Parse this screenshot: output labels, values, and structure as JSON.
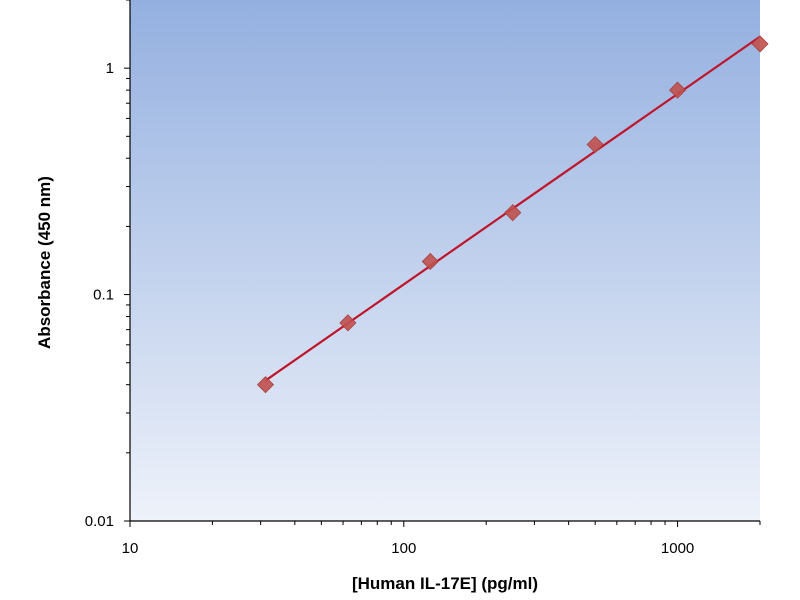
{
  "chart_data": {
    "type": "scatter",
    "title": "",
    "xlabel": "[Human IL-17E] (pg/ml)",
    "ylabel": "Absorbance (450 nm)",
    "x_scale": "log",
    "y_scale": "log",
    "xlim": [
      10,
      2000
    ],
    "ylim": [
      0.01,
      2
    ],
    "x_ticks": [
      {
        "value": 10,
        "label": "10"
      },
      {
        "value": 100,
        "label": "100"
      },
      {
        "value": 1000,
        "label": "1000"
      }
    ],
    "y_ticks": [
      {
        "value": 0.01,
        "label": "0.01"
      },
      {
        "value": 0.1,
        "label": "0.1"
      },
      {
        "value": 1,
        "label": "1"
      }
    ],
    "grid": false,
    "legend": "none",
    "series": [
      {
        "x": [
          31.25,
          62.5,
          125,
          250,
          500,
          1000,
          2000
        ],
        "y": [
          0.04,
          0.075,
          0.14,
          0.23,
          0.46,
          0.8,
          1.28
        ],
        "marker": "diamond",
        "color": "#c0504d",
        "fit_line": true,
        "fit_line_color": "#c0142a"
      }
    ],
    "background_gradient": [
      "#94b0e0",
      "#eef2fa"
    ]
  }
}
